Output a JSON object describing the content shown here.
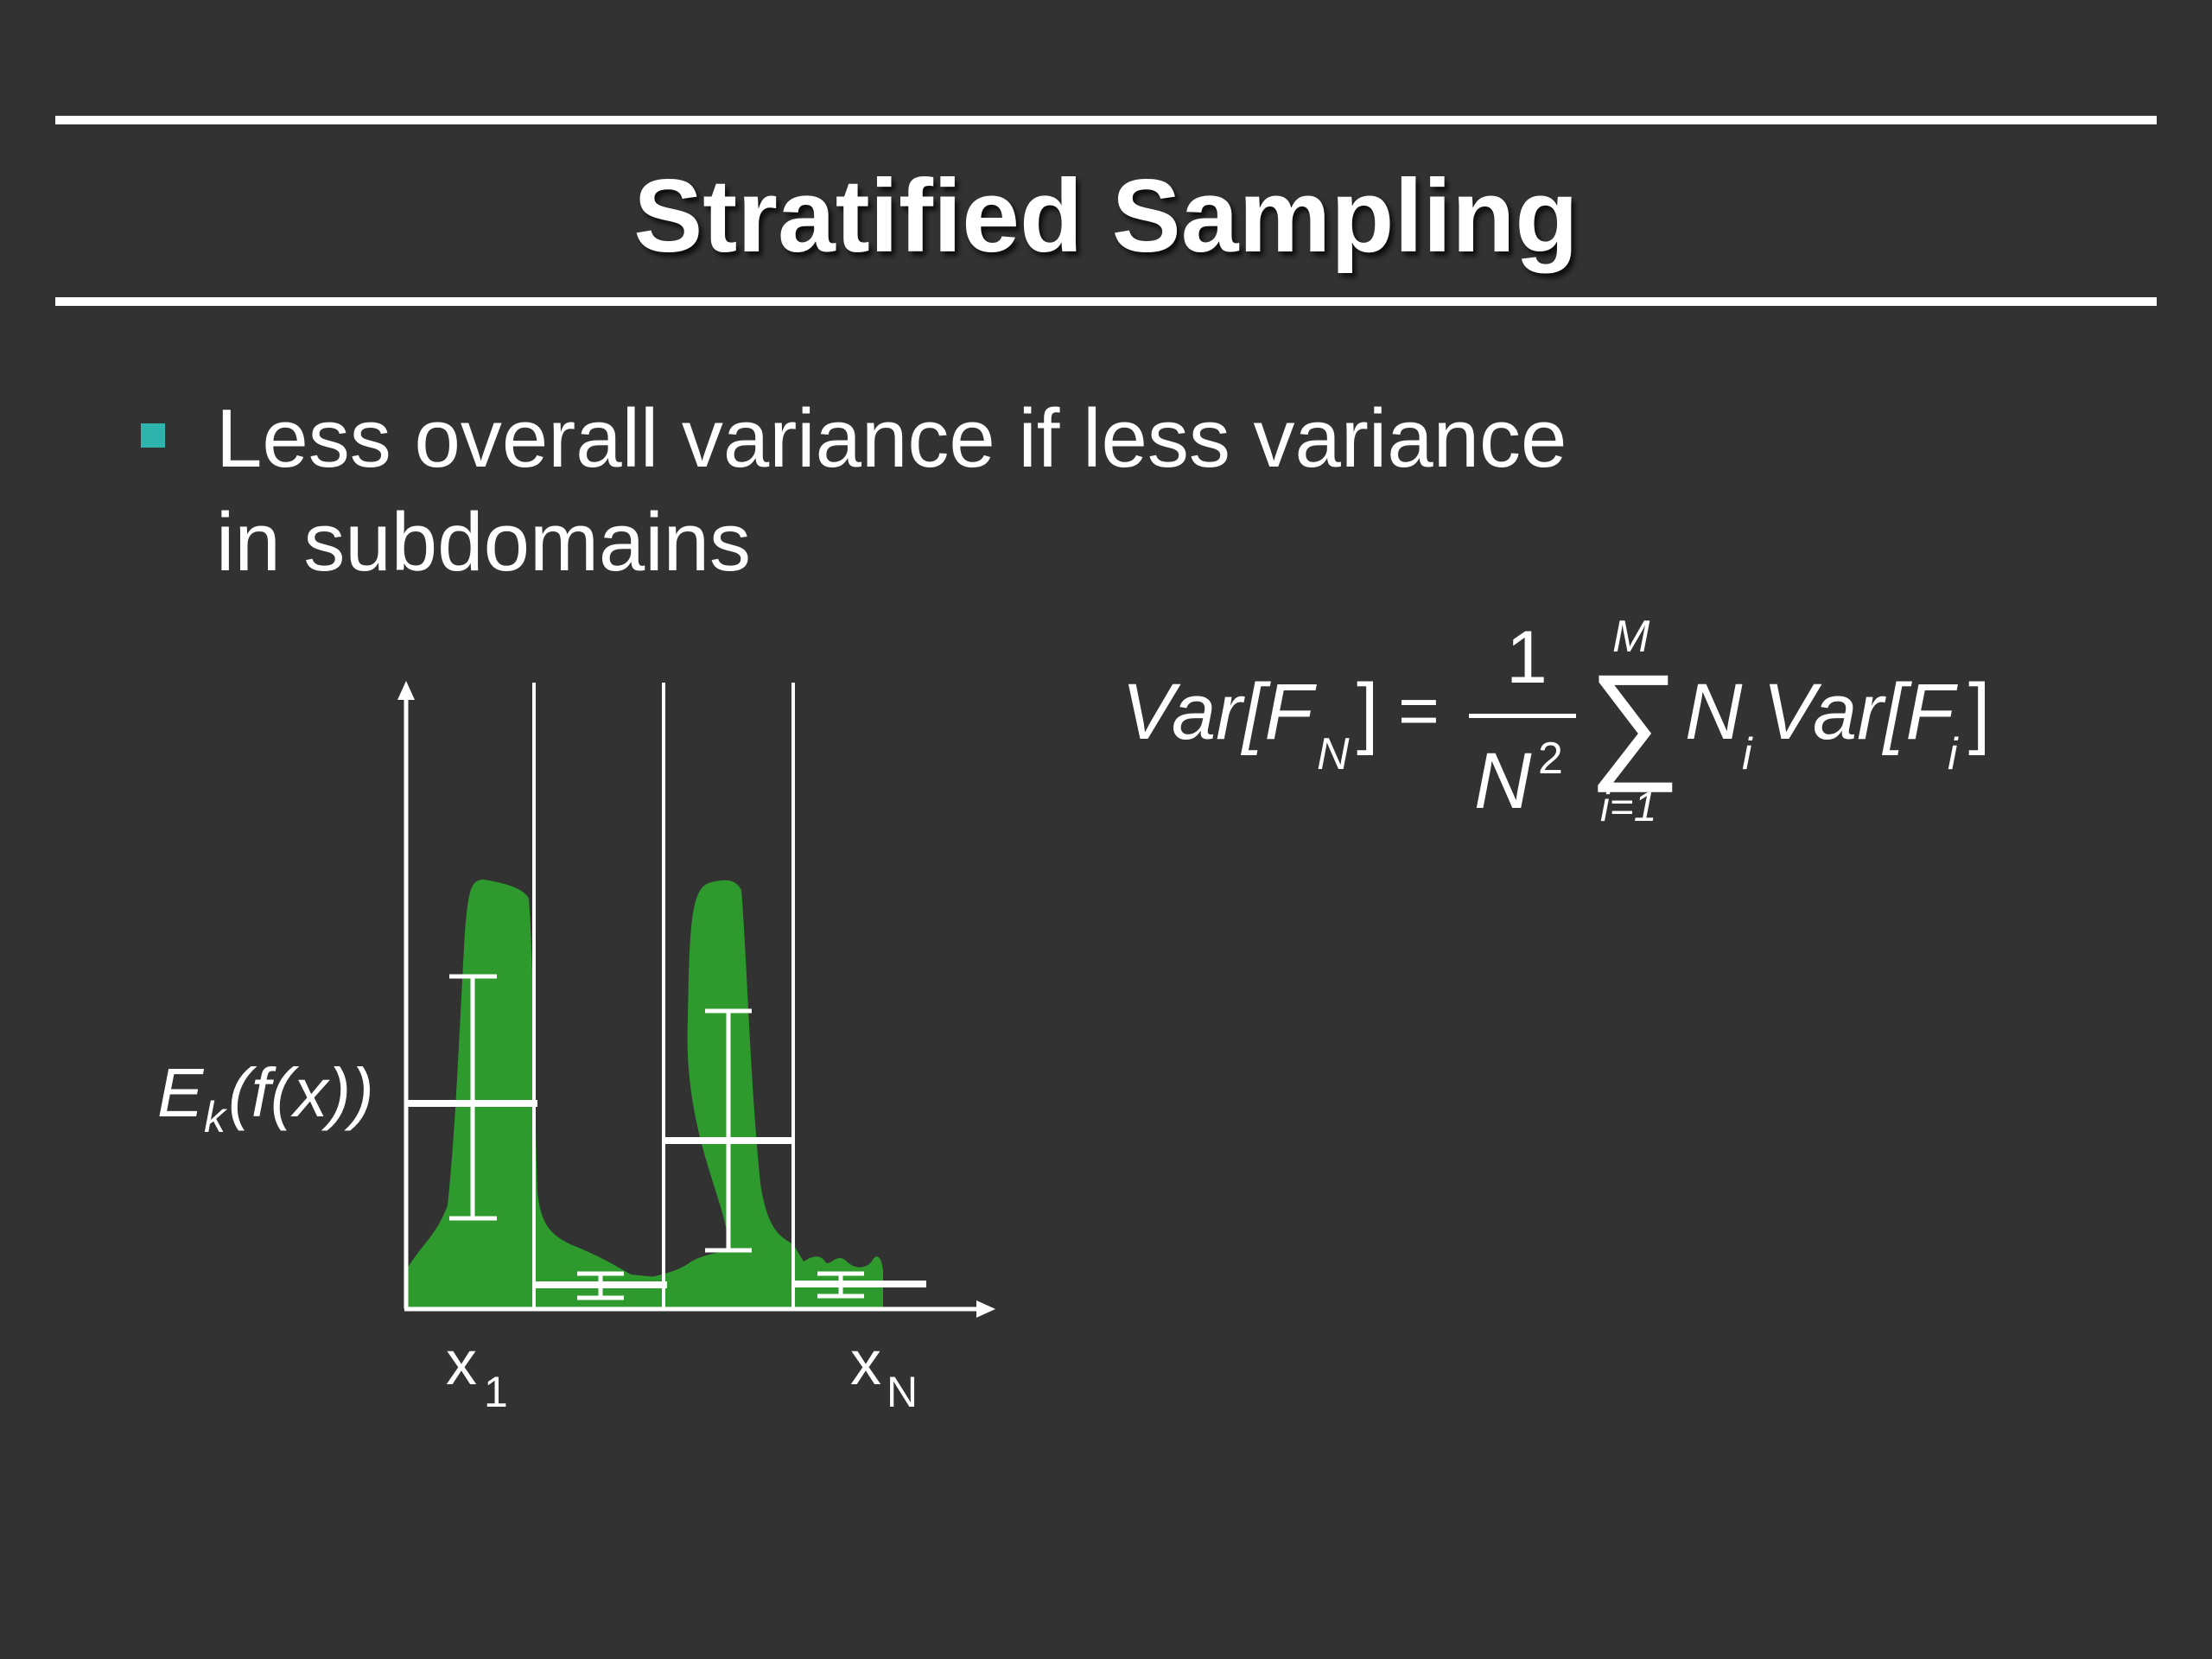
{
  "slide": {
    "title": "Stratified Sampling",
    "bullet": {
      "line1": "Less overall variance if less variance",
      "line2": "in subdomains",
      "marker_color": "#2fb3ad"
    }
  },
  "formula": {
    "lhs": "Var[F",
    "lhs_sub": "N",
    "lhs_close": "]",
    "equals": "=",
    "numerator": "1",
    "denominator": "N",
    "denominator_exp": "2",
    "sum_symbol": "∑",
    "sum_upper": "M",
    "sum_lower": "i=1",
    "term_N": "N",
    "term_N_sub": "i",
    "term_var": "Var[F",
    "term_var_sub": "i",
    "term_close": "]"
  },
  "diagram": {
    "y_label": "E",
    "y_label_sub": "k",
    "y_label_rest": "(f(x))",
    "x_label_first": "x",
    "x_label_first_sub": "1",
    "x_label_last": "x",
    "x_label_last_sub": "N",
    "fill_color": "#2e9a2e"
  },
  "colors": {
    "background": "#323232",
    "text": "#ffffff",
    "accent": "#2fb3ad",
    "curve_fill": "#2e9a2e"
  }
}
